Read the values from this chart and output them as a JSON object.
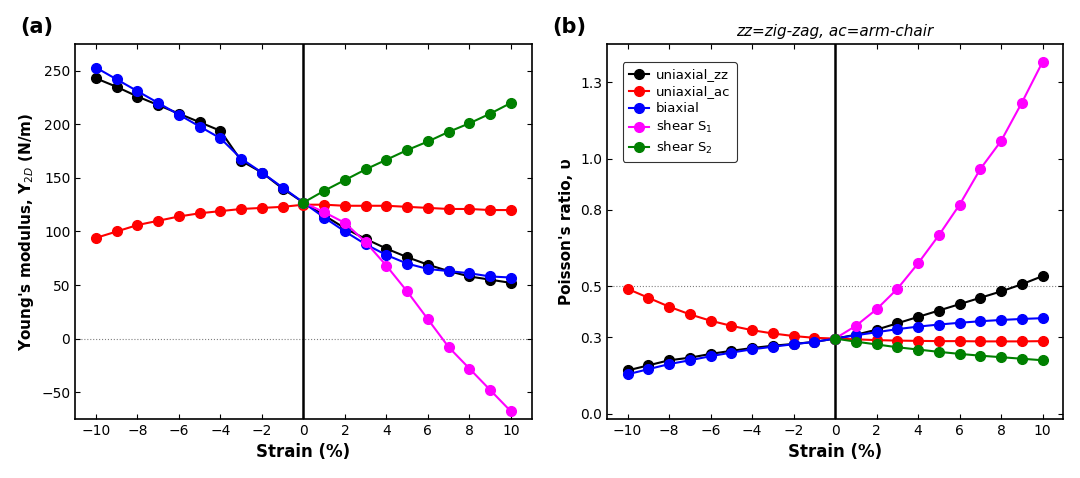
{
  "strain": [
    -10,
    -9,
    -8,
    -7,
    -6,
    -5,
    -4,
    -3,
    -2,
    -1,
    0,
    1,
    2,
    3,
    4,
    5,
    6,
    7,
    8,
    9,
    10
  ],
  "panel_a": {
    "uniaxial_zz": [
      243,
      235,
      226,
      218,
      210,
      202,
      194,
      166,
      155,
      140,
      127,
      115,
      103,
      93,
      84,
      76,
      69,
      63,
      58,
      55,
      52
    ],
    "uniaxial_ac": [
      94,
      100,
      106,
      110,
      114,
      117,
      119,
      121,
      122,
      123,
      125,
      125,
      124,
      124,
      124,
      123,
      122,
      121,
      121,
      120,
      120
    ],
    "biaxial": [
      253,
      242,
      231,
      220,
      209,
      198,
      187,
      168,
      155,
      141,
      127,
      113,
      100,
      88,
      78,
      70,
      65,
      63,
      61,
      58,
      57
    ],
    "shear_S1_strain": [
      0,
      1,
      2,
      3,
      4,
      5,
      6,
      7,
      8,
      9,
      10
    ],
    "shear_S1": [
      127,
      118,
      108,
      90,
      68,
      44,
      18,
      -8,
      -28,
      -48,
      -68
    ],
    "shear_S2_strain": [
      0,
      1,
      2,
      3,
      4,
      5,
      6,
      7,
      8,
      9,
      10
    ],
    "shear_S2": [
      127,
      138,
      148,
      158,
      167,
      176,
      184,
      193,
      201,
      210,
      220
    ],
    "ylabel": "Young's modulus, Y$_{2D}$ (N/m)",
    "ylim": [
      -75,
      275
    ],
    "yticks": [
      -50,
      0,
      50,
      100,
      150,
      200,
      250
    ],
    "hline_y": 0,
    "vline_x": 0,
    "label": "(a)"
  },
  "panel_b": {
    "uniaxial_zz": [
      0.17,
      0.19,
      0.21,
      0.22,
      0.235,
      0.247,
      0.258,
      0.267,
      0.274,
      0.282,
      0.295,
      0.31,
      0.33,
      0.355,
      0.38,
      0.405,
      0.43,
      0.455,
      0.48,
      0.508,
      0.54
    ],
    "uniaxial_ac": [
      0.49,
      0.455,
      0.42,
      0.39,
      0.365,
      0.345,
      0.328,
      0.315,
      0.305,
      0.298,
      0.295,
      0.292,
      0.289,
      0.287,
      0.286,
      0.285,
      0.285,
      0.284,
      0.284,
      0.284,
      0.285
    ],
    "biaxial": [
      0.155,
      0.175,
      0.195,
      0.21,
      0.226,
      0.24,
      0.253,
      0.263,
      0.273,
      0.282,
      0.295,
      0.308,
      0.32,
      0.332,
      0.342,
      0.35,
      0.357,
      0.363,
      0.368,
      0.372,
      0.375
    ],
    "shear_S1_strain": [
      0,
      1,
      2,
      3,
      4,
      5,
      6,
      7,
      8,
      9,
      10
    ],
    "shear_S1": [
      0.295,
      0.345,
      0.41,
      0.49,
      0.59,
      0.7,
      0.82,
      0.96,
      1.07,
      1.22,
      1.38
    ],
    "shear_S2_strain": [
      0,
      1,
      2,
      3,
      4,
      5,
      6,
      7,
      8,
      9,
      10
    ],
    "shear_S2": [
      0.295,
      0.283,
      0.272,
      0.261,
      0.252,
      0.243,
      0.235,
      0.228,
      0.222,
      0.216,
      0.21
    ],
    "ylabel": "Poisson's ratio, υ",
    "ylim": [
      -0.02,
      1.45
    ],
    "yticks": [
      0.0,
      0.3,
      0.5,
      0.8,
      1.0,
      1.3
    ],
    "hline_y": 0.5,
    "vline_x": 0,
    "title": "zz=zig-zag, ac=arm-chair",
    "label": "(b)",
    "legend_labels": [
      "uniaxial_zz",
      "uniaxial_ac",
      "biaxial",
      "shear S$_1$",
      "shear S$_2$"
    ]
  },
  "colors": {
    "uniaxial_zz": "#000000",
    "uniaxial_ac": "#ff0000",
    "biaxial": "#0000ff",
    "shear_S1": "#ff00ff",
    "shear_S2": "#008000"
  },
  "xlabel": "Strain (%)",
  "xticks": [
    -10,
    -8,
    -6,
    -4,
    -2,
    0,
    2,
    4,
    6,
    8,
    10
  ],
  "marker": "o",
  "markersize": 7,
  "linewidth": 1.5,
  "figsize": [
    10.8,
    4.78
  ],
  "dpi": 100
}
